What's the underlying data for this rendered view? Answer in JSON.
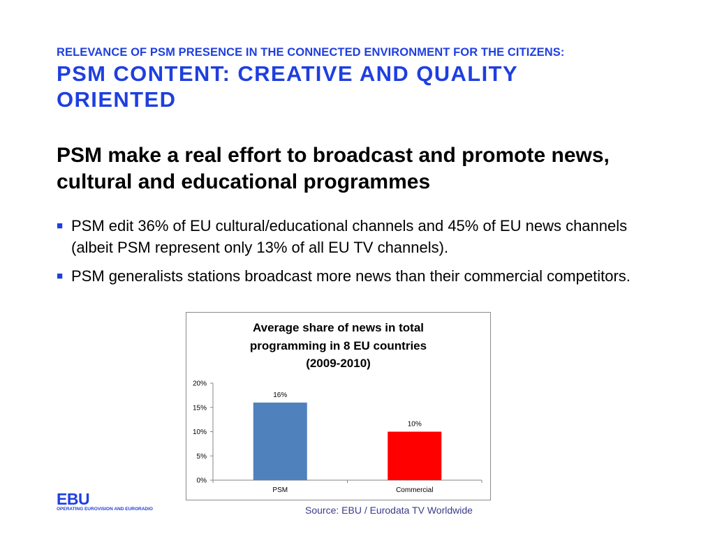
{
  "header": {
    "kicker": "RELEVANCE OF PSM PRESENCE IN THE CONNECTED ENVIRONMENT FOR THE CITIZENS:",
    "title": "PSM CONTENT: CREATIVE AND QUALITY ORIENTED"
  },
  "main": {
    "heading": "PSM make a real effort to broadcast and promote news, cultural and educational programmes",
    "bullets": [
      "PSM edit 36% of EU cultural/educational channels and 45% of EU news channels (albeit PSM represent only 13% of all EU TV channels).",
      "PSM generalists stations broadcast more news than their commercial competitors."
    ]
  },
  "chart_data": {
    "type": "bar",
    "title": "Average share of news in total\nprogramming in 8 EU countries\n(2009-2010)",
    "categories": [
      "PSM",
      "Commercial"
    ],
    "values": [
      0.16,
      0.1
    ],
    "data_labels": [
      "16%",
      "10%"
    ],
    "bar_colors": [
      "#4f81bd",
      "#ff0000"
    ],
    "ylim": [
      0,
      0.2
    ],
    "yticks": [
      0,
      0.05,
      0.1,
      0.15,
      0.2
    ],
    "ytick_labels": [
      "0%",
      "5%",
      "10%",
      "15%",
      "20%"
    ],
    "grid": false,
    "legend": "none"
  },
  "footer": {
    "logo_name": "EBU",
    "logo_tagline": "OPERATING EUROVISION AND EURORADIO",
    "source": "Source: EBU / Eurodata TV Worldwide"
  },
  "colors": {
    "accent": "#1f3fe0",
    "psm_bar": "#4f81bd",
    "commercial_bar": "#ff0000"
  }
}
